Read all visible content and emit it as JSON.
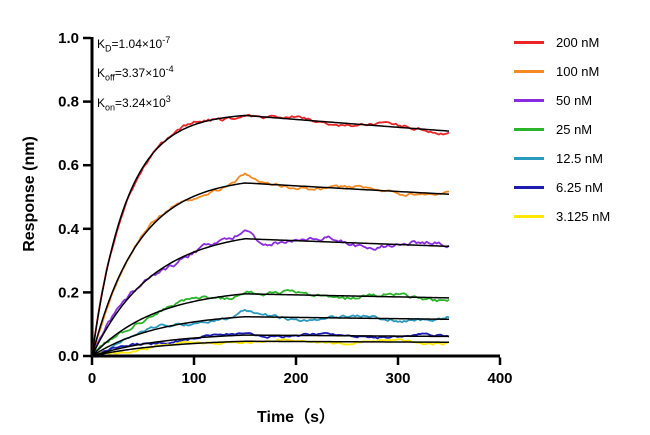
{
  "figure": {
    "annotation": {
      "lines": [
        {
          "base": "K",
          "sub": "D",
          "value": "=1.04×10",
          "exp": "-7"
        },
        {
          "base": "K",
          "sub": "off",
          "value": "=3.37×10",
          "exp": "-4"
        },
        {
          "base": "K",
          "sub": "on",
          "value": "=3.24×10",
          "exp": "3"
        }
      ]
    }
  },
  "chart_data": {
    "type": "line",
    "title": "",
    "xlabel": "Time（s）",
    "ylabel": "Response (nm)",
    "xlim": [
      0,
      400
    ],
    "ylim": [
      0,
      1.0
    ],
    "x_ticks": [
      0,
      100,
      200,
      300,
      400
    ],
    "y_ticks": [
      "0.0",
      "0.2",
      "0.4",
      "0.6",
      "0.8",
      "1.0"
    ],
    "grid": false,
    "legend_position": "right",
    "association_end_s": 150,
    "trace_end_s": 350,
    "fit_color": "#000000",
    "fit": {
      "KD_M": 1.04e-07,
      "koff_per_s": 0.000337,
      "kon_per_M_s": 3240
    },
    "series": [
      {
        "name": "200 nM",
        "color": "#ec2426",
        "plateau": 0.765,
        "response_at_150s": 0.765,
        "end": 0.72,
        "kobs": 0.03,
        "overshoot": 0.008,
        "noise": 0.008,
        "seed": 1
      },
      {
        "name": "100 nM",
        "color": "#f6891f",
        "plateau": 0.565,
        "response_at_150s": 0.565,
        "end": 0.525,
        "kobs": 0.022,
        "overshoot": 0.024,
        "noise": 0.008,
        "seed": 2
      },
      {
        "name": "50 nM",
        "color": "#8a2be2",
        "plateau": 0.4,
        "response_at_150s": 0.398,
        "end": 0.37,
        "kobs": 0.017,
        "overshoot": 0.02,
        "noise": 0.012,
        "seed": 3
      },
      {
        "name": "25 nM",
        "color": "#2ab52a",
        "plateau": 0.215,
        "response_at_150s": 0.214,
        "end": 0.2,
        "kobs": 0.016,
        "overshoot": 0.015,
        "noise": 0.009,
        "seed": 4
      },
      {
        "name": "12.5 nM",
        "color": "#2a9bbf",
        "plateau": 0.138,
        "response_at_150s": 0.137,
        "end": 0.128,
        "kobs": 0.015,
        "overshoot": 0.011,
        "noise": 0.008,
        "seed": 5
      },
      {
        "name": "6.25 nM",
        "color": "#1c1cb0",
        "plateau": 0.075,
        "response_at_150s": 0.074,
        "end": 0.068,
        "kobs": 0.014,
        "overshoot": 0.004,
        "noise": 0.006,
        "seed": 6
      },
      {
        "name": "3.125 nM",
        "color": "#ffe800",
        "plateau": 0.054,
        "response_at_150s": 0.053,
        "end": 0.049,
        "kobs": 0.013,
        "overshoot": 0.003,
        "noise": 0.006,
        "seed": 7
      }
    ]
  }
}
